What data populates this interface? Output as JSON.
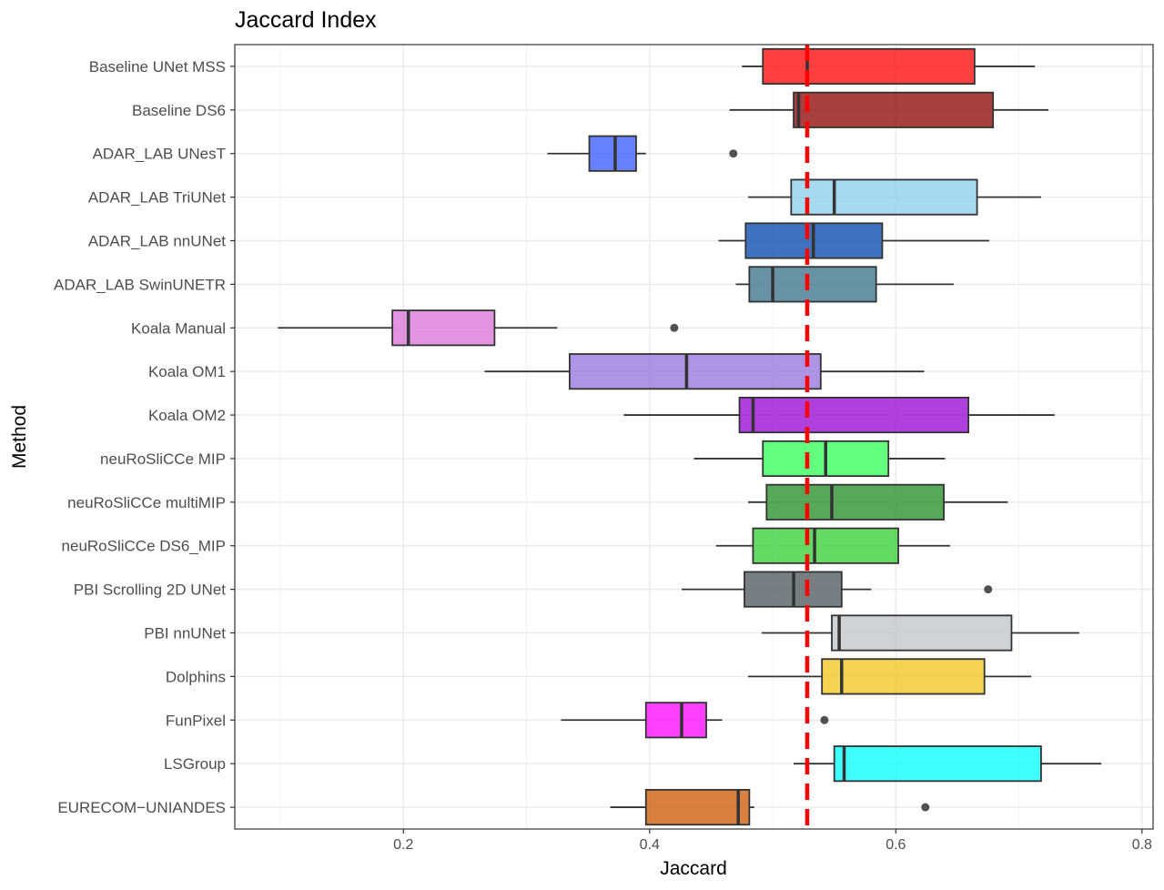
{
  "chart_data": {
    "type": "boxplot",
    "orientation": "horizontal",
    "title": "Jaccard Index",
    "xlabel": "Jaccard",
    "ylabel": "Method",
    "xlim": [
      0.063,
      0.809
    ],
    "xticks": [
      0.2,
      0.4,
      0.6,
      0.8
    ],
    "xtick_labels": [
      "0.2",
      "0.4",
      "0.6",
      "0.8"
    ],
    "grid": true,
    "reference_line": {
      "value": 0.528,
      "color": "#ff0000",
      "style": "dashed"
    },
    "series": [
      {
        "name": "Baseline UNet MSS",
        "color": "#ff0000",
        "whisker_low": 0.475,
        "q1": 0.492,
        "median": 0.528,
        "q3": 0.664,
        "whisker_high": 0.713,
        "outliers": []
      },
      {
        "name": "Baseline DS6",
        "color": "#8b0000",
        "whisker_low": 0.465,
        "q1": 0.517,
        "median": 0.521,
        "q3": 0.679,
        "whisker_high": 0.724,
        "outliers": []
      },
      {
        "name": "ADAR_LAB UNesT",
        "color": "#3355ff",
        "whisker_low": 0.317,
        "q1": 0.351,
        "median": 0.372,
        "q3": 0.389,
        "whisker_high": 0.397,
        "outliers": [
          0.468
        ]
      },
      {
        "name": "ADAR_LAB TriUNet",
        "color": "#87ceeb",
        "whisker_low": 0.48,
        "q1": 0.515,
        "median": 0.55,
        "q3": 0.666,
        "whisker_high": 0.718,
        "outliers": []
      },
      {
        "name": "ADAR_LAB nnUNet",
        "color": "#0044aa",
        "whisker_low": 0.456,
        "q1": 0.478,
        "median": 0.533,
        "q3": 0.589,
        "whisker_high": 0.676,
        "outliers": []
      },
      {
        "name": "ADAR_LAB SwinUNETR",
        "color": "#346f86",
        "whisker_low": 0.47,
        "q1": 0.481,
        "median": 0.5,
        "q3": 0.584,
        "whisker_high": 0.647,
        "outliers": []
      },
      {
        "name": "Koala Manual",
        "color": "#da70d6",
        "whisker_low": 0.098,
        "q1": 0.191,
        "median": 0.204,
        "q3": 0.274,
        "whisker_high": 0.325,
        "outliers": [
          0.42
        ]
      },
      {
        "name": "Koala OM1",
        "color": "#9370db",
        "whisker_low": 0.266,
        "q1": 0.335,
        "median": 0.43,
        "q3": 0.539,
        "whisker_high": 0.623,
        "outliers": []
      },
      {
        "name": "Koala OM2",
        "color": "#9400d3",
        "whisker_low": 0.379,
        "q1": 0.473,
        "median": 0.484,
        "q3": 0.659,
        "whisker_high": 0.729,
        "outliers": []
      },
      {
        "name": "neuRoSliCCe MIP",
        "color": "#32ff55",
        "whisker_low": 0.436,
        "q1": 0.492,
        "median": 0.543,
        "q3": 0.594,
        "whisker_high": 0.64,
        "outliers": []
      },
      {
        "name": "neuRoSliCCe multiMIP",
        "color": "#228b22",
        "whisker_low": 0.48,
        "q1": 0.495,
        "median": 0.548,
        "q3": 0.639,
        "whisker_high": 0.691,
        "outliers": []
      },
      {
        "name": "neuRoSliCCe DS6_MIP",
        "color": "#32cd32",
        "whisker_low": 0.454,
        "q1": 0.484,
        "median": 0.534,
        "q3": 0.602,
        "whisker_high": 0.644,
        "outliers": []
      },
      {
        "name": "PBI Scrolling 2D UNet",
        "color": "#4a5459",
        "whisker_low": 0.426,
        "q1": 0.477,
        "median": 0.517,
        "q3": 0.556,
        "whisker_high": 0.58,
        "outliers": [
          0.675
        ]
      },
      {
        "name": "PBI nnUNet",
        "color": "#c0c4c7",
        "whisker_low": 0.491,
        "q1": 0.548,
        "median": 0.554,
        "q3": 0.694,
        "whisker_high": 0.749,
        "outliers": []
      },
      {
        "name": "Dolphins",
        "color": "#f0c419",
        "whisker_low": 0.48,
        "q1": 0.54,
        "median": 0.556,
        "q3": 0.672,
        "whisker_high": 0.71,
        "outliers": []
      },
      {
        "name": "FunPixel",
        "color": "#ff00ff",
        "whisker_low": 0.328,
        "q1": 0.397,
        "median": 0.426,
        "q3": 0.446,
        "whisker_high": 0.459,
        "outliers": [
          0.542
        ]
      },
      {
        "name": "LSGroup",
        "color": "#00ffff",
        "whisker_low": 0.517,
        "q1": 0.55,
        "median": 0.558,
        "q3": 0.718,
        "whisker_high": 0.767,
        "outliers": []
      },
      {
        "name": "EURECOM−UNIANDES",
        "color": "#cc5500",
        "whisker_low": 0.368,
        "q1": 0.397,
        "median": 0.472,
        "q3": 0.481,
        "whisker_high": 0.485,
        "outliers": [
          0.624
        ]
      }
    ]
  }
}
